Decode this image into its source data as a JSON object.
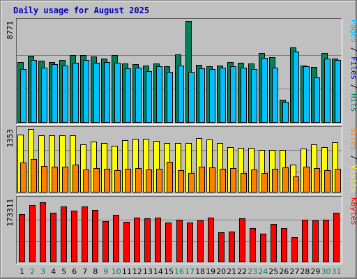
{
  "chart_data": {
    "type": "bar",
    "title": "Daily usage for August 2025",
    "categories": [
      "1",
      "2",
      "3",
      "4",
      "5",
      "6",
      "7",
      "8",
      "9",
      "10",
      "11",
      "12",
      "13",
      "14",
      "15",
      "16",
      "17",
      "18",
      "19",
      "20",
      "21",
      "22",
      "23",
      "24",
      "25",
      "26",
      "27",
      "28",
      "29",
      "30",
      "31"
    ],
    "weekend_days": [
      "2",
      "3",
      "9",
      "10",
      "16",
      "17",
      "23",
      "24",
      "30",
      "31"
    ],
    "colors": {
      "hits": "#00805c",
      "files": "#00c0ff",
      "visits": "#ffff00",
      "sites": "#ff8000",
      "kbytes": "#ff0000",
      "weekday_label": "#000000",
      "weekend_label": "#00805c"
    },
    "panels": [
      {
        "id": "pages-files-hits",
        "axis_max_label": "8771",
        "ymax": 8771,
        "side_label": [
          {
            "text": "Pages",
            "color": "#00c0ff"
          },
          {
            "text": " / ",
            "color": "#000000"
          },
          {
            "text": "Files",
            "color": "#0000c0"
          },
          {
            "text": " / ",
            "color": "#000000"
          },
          {
            "text": "Hits",
            "color": "#00805c"
          }
        ],
        "series": [
          {
            "name": "Hits",
            "color": "#00805c",
            "values": [
              5200,
              5750,
              5350,
              5250,
              5400,
              5850,
              5800,
              5700,
              5550,
              5850,
              5100,
              5050,
              4900,
              5100,
              4850,
              5900,
              8771,
              5000,
              4850,
              4950,
              5250,
              5150,
              5100,
              6000,
              5650,
              2000,
              6500,
              4950,
              4800,
              6000,
              5500
            ]
          },
          {
            "name": "Files",
            "color": "#00c0ff",
            "values": [
              4650,
              5400,
              4750,
              5050,
              4950,
              5150,
              5400,
              5150,
              5200,
              5150,
              4700,
              4750,
              4450,
              4850,
              4400,
              4900,
              4400,
              4700,
              4650,
              4750,
              4850,
              4750,
              4600,
              5600,
              4750,
              1800,
              6100,
              4850,
              3900,
              5550,
              5400
            ]
          }
        ]
      },
      {
        "id": "sites-visits",
        "axis_max_label": "1353",
        "ymax": 1353,
        "side_label": [
          {
            "text": "Sites",
            "color": "#ff8000"
          },
          {
            "text": " / ",
            "color": "#000000"
          },
          {
            "text": "Visits",
            "color": "#ffff00"
          }
        ],
        "series": [
          {
            "name": "Visits",
            "color": "#ffff00",
            "values": [
              1230,
              1353,
              1220,
              1225,
              1225,
              1215,
              1020,
              1090,
              1060,
              990,
              1120,
              1150,
              1140,
              1100,
              1060,
              1060,
              1060,
              1160,
              1130,
              1060,
              960,
              950,
              950,
              910,
              910,
              900,
              590,
              940,
              1030,
              970,
              1070
            ]
          },
          {
            "name": "Sites",
            "color": "#ff8000",
            "values": [
              640,
              710,
              570,
              555,
              545,
              595,
              485,
              515,
              510,
              480,
              500,
              515,
              490,
              500,
              655,
              475,
              420,
              545,
              530,
              505,
              525,
              410,
              490,
              415,
              505,
              530,
              335,
              545,
              520,
              470,
              500
            ]
          }
        ]
      },
      {
        "id": "kbytes",
        "axis_max_label": "173311",
        "ymax": 173311,
        "side_label": [
          {
            "text": "KBytes",
            "color": "#ff0000"
          }
        ],
        "series": [
          {
            "name": "KBytes",
            "color": "#ff0000",
            "values": [
              132000,
              157000,
              163000,
              135000,
              152000,
              141000,
              153000,
              142000,
              113000,
              130000,
              110000,
              122000,
              120000,
              121000,
              109000,
              117000,
              108000,
              115000,
              122000,
              82000,
              83000,
              120000,
              94000,
              79000,
              104000,
              94000,
              69000,
              116000,
              114000,
              116000,
              135000
            ]
          }
        ]
      }
    ]
  }
}
